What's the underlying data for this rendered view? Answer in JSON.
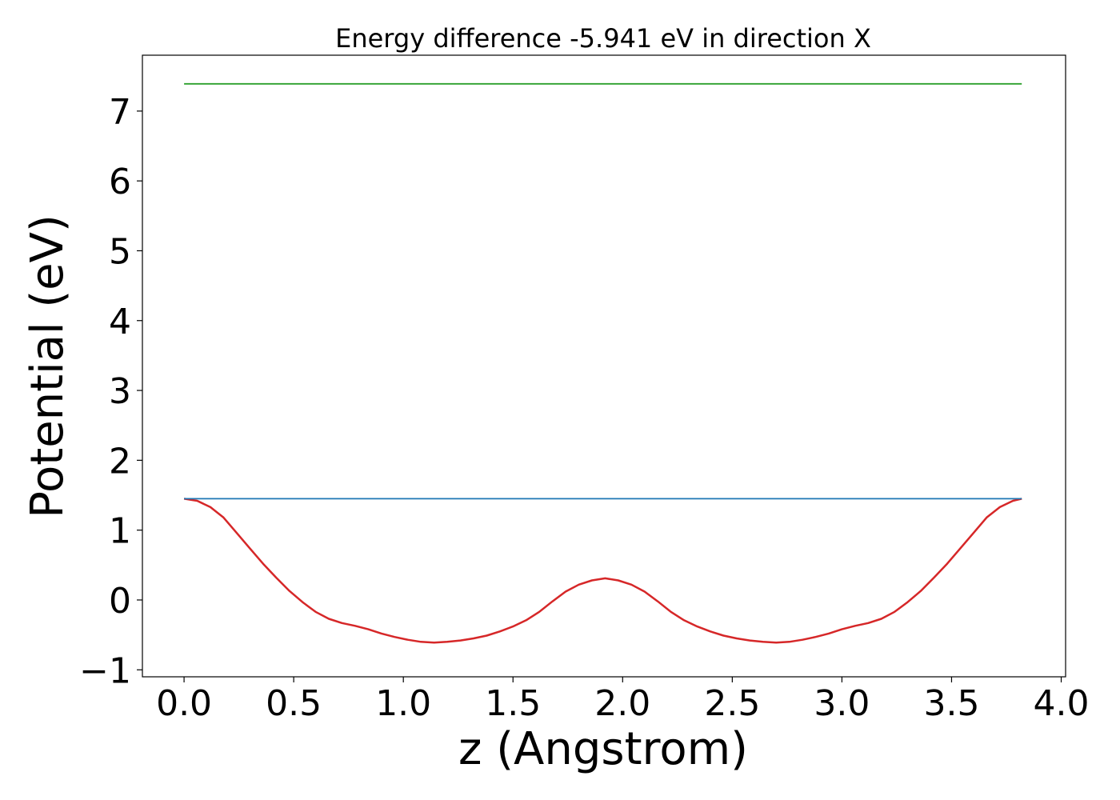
{
  "chart_data": {
    "type": "line",
    "title": "Energy difference -5.941 eV in direction X",
    "xlabel": "z (Angstrom)",
    "ylabel": "Potential (eV)",
    "xlim": [
      -0.19,
      4.02
    ],
    "ylim": [
      -1.1,
      7.8
    ],
    "xticks": [
      0.0,
      0.5,
      1.0,
      1.5,
      2.0,
      2.5,
      3.0,
      3.5,
      4.0
    ],
    "xtick_labels": [
      "0.0",
      "0.5",
      "1.0",
      "1.5",
      "2.0",
      "2.5",
      "3.0",
      "3.5",
      "4.0"
    ],
    "yticks": [
      -1,
      0,
      1,
      2,
      3,
      4,
      5,
      6,
      7
    ],
    "ytick_labels": [
      "−1",
      "0",
      "1",
      "2",
      "3",
      "4",
      "5",
      "6",
      "7"
    ],
    "grid": false,
    "series": [
      {
        "color": "#d62728",
        "x": [
          0.0,
          0.06,
          0.12,
          0.18,
          0.24,
          0.3,
          0.36,
          0.42,
          0.48,
          0.54,
          0.6,
          0.66,
          0.72,
          0.78,
          0.84,
          0.9,
          0.96,
          1.02,
          1.08,
          1.14,
          1.2,
          1.26,
          1.32,
          1.38,
          1.44,
          1.5,
          1.56,
          1.62,
          1.68,
          1.74,
          1.8,
          1.86,
          1.92,
          1.98,
          2.04,
          2.1,
          2.16,
          2.22,
          2.28,
          2.34,
          2.4,
          2.46,
          2.52,
          2.58,
          2.64,
          2.7,
          2.76,
          2.82,
          2.88,
          2.94,
          3.0,
          3.06,
          3.12,
          3.18,
          3.24,
          3.3,
          3.36,
          3.42,
          3.48,
          3.54,
          3.6,
          3.66,
          3.72,
          3.78,
          3.82
        ],
        "y": [
          1.45,
          1.42,
          1.33,
          1.18,
          0.96,
          0.74,
          0.52,
          0.32,
          0.13,
          -0.03,
          -0.17,
          -0.27,
          -0.33,
          -0.37,
          -0.42,
          -0.48,
          -0.53,
          -0.57,
          -0.6,
          -0.61,
          -0.6,
          -0.58,
          -0.55,
          -0.51,
          -0.45,
          -0.38,
          -0.29,
          -0.17,
          -0.02,
          0.12,
          0.22,
          0.28,
          0.31,
          0.28,
          0.22,
          0.12,
          -0.02,
          -0.17,
          -0.29,
          -0.38,
          -0.45,
          -0.51,
          -0.55,
          -0.58,
          -0.6,
          -0.61,
          -0.6,
          -0.57,
          -0.53,
          -0.48,
          -0.42,
          -0.37,
          -0.33,
          -0.27,
          -0.17,
          -0.03,
          0.13,
          0.32,
          0.52,
          0.74,
          0.96,
          1.18,
          1.33,
          1.42,
          1.45
        ]
      },
      {
        "color": "#1f77b4",
        "x": [
          0.0,
          3.82
        ],
        "y": [
          1.45,
          1.45
        ]
      },
      {
        "color": "#2ca02c",
        "x": [
          0.0,
          3.82
        ],
        "y": [
          7.39,
          7.39
        ]
      }
    ]
  }
}
